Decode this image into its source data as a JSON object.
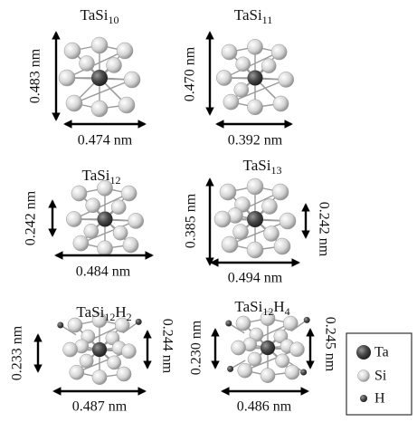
{
  "panels": [
    {
      "title": [
        {
          "text": "TaSi",
          "sub": false
        },
        {
          "text": "10",
          "sub": true
        }
      ],
      "dimensions": [
        "0.483 nm",
        "0.474 nm"
      ]
    },
    {
      "title": [
        {
          "text": "TaSi",
          "sub": false
        },
        {
          "text": "11",
          "sub": true
        }
      ],
      "dimensions": [
        "0.470 nm",
        "0.392 nm"
      ]
    },
    {
      "title": [
        {
          "text": "TaSi",
          "sub": false
        },
        {
          "text": "12",
          "sub": true
        }
      ],
      "dimensions": [
        "0.242 nm",
        "0.484 nm"
      ]
    },
    {
      "title": [
        {
          "text": "TaSi",
          "sub": false
        },
        {
          "text": "13",
          "sub": true
        }
      ],
      "dimensions": [
        "0.385 nm",
        "0.242 nm",
        "0.494 nm"
      ]
    },
    {
      "title": [
        {
          "text": "TaSi",
          "sub": false
        },
        {
          "text": "12",
          "sub": true
        },
        {
          "text": "H",
          "sub": false
        },
        {
          "text": "2",
          "sub": true
        }
      ],
      "dimensions": [
        "0.233 nm",
        "0.244 nm",
        "0.487 nm"
      ]
    },
    {
      "title": [
        {
          "text": "TaSi",
          "sub": false
        },
        {
          "text": "12",
          "sub": true
        },
        {
          "text": "H",
          "sub": false
        },
        {
          "text": "4",
          "sub": true
        }
      ],
      "dimensions": [
        "0.230 nm",
        "0.245 nm",
        "0.486 nm"
      ]
    }
  ],
  "legend": [
    "Ta",
    "Si",
    "H"
  ]
}
